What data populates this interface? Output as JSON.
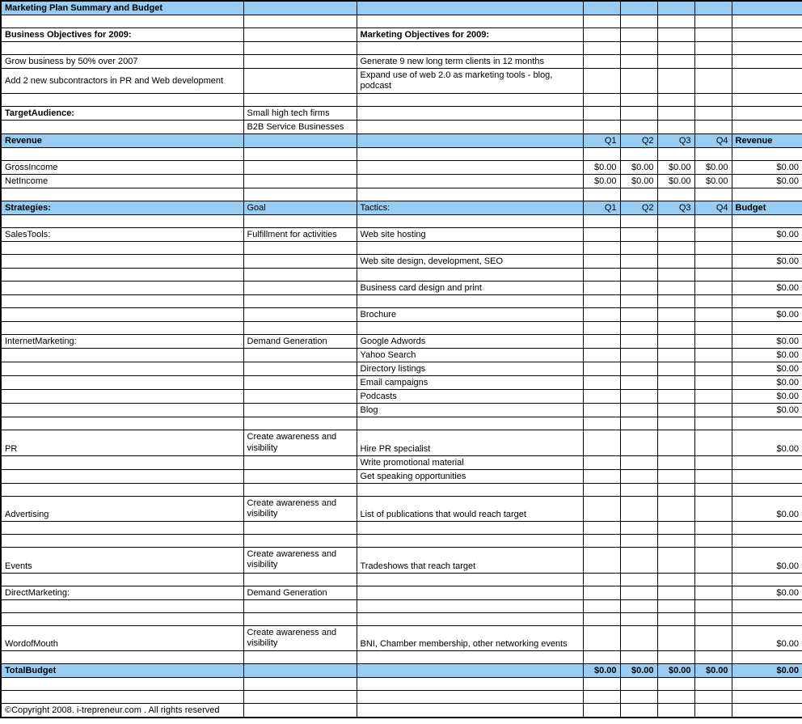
{
  "colors": {
    "header_bg": "#99ccf2",
    "border": "#000000",
    "text": "#000000",
    "bg": "#ffffff"
  },
  "title": "Marketing Plan Summary and Budget",
  "section1": {
    "left_header": "Business Objectives for 2009:",
    "right_header": "Marketing Objectives for 2009:",
    "left1": "Grow business by 50% over 2007",
    "right1": "Generate 9 new long term clients in 12 months",
    "left2": "Add 2 new subcontractors in PR and Web development",
    "right2": "Expand use of web 2.0 as marketing tools - blog, podcast"
  },
  "target": {
    "label": "TargetAudience:",
    "v1": "Small high tech firms",
    "v2": "B2B Service Businesses"
  },
  "revenue": {
    "label": "Revenue",
    "q1": "Q1",
    "q2": "Q2",
    "q3": "Q3",
    "q4": "Q4",
    "rev": "Revenue",
    "gross": "GrossIncome",
    "net": "NetIncome",
    "zero": "$0.00"
  },
  "strategies": {
    "label": "Strategies:",
    "goal": "Goal",
    "tactics": "Tactics:",
    "q1": "Q1",
    "q2": "Q2",
    "q3": "Q3",
    "q4": "Q4",
    "budget": "Budget"
  },
  "sales": {
    "name": "SalesTools:",
    "goal": "Fulfillment for activities",
    "t1": "Web site hosting",
    "t2": "Web site design, development, SEO",
    "t3": "Business card design and print",
    "t4": "Brochure"
  },
  "internet": {
    "name": "InternetMarketing:",
    "goal": "Demand Generation",
    "t1": "Google Adwords",
    "t2": "Yahoo Search",
    "t3": "Directory listings",
    "t4": "Email campaigns",
    "t5": "Podcasts",
    "t6": "Blog"
  },
  "pr": {
    "name": "PR",
    "goal": "Create awareness and visibility",
    "t1": "Hire PR specialist",
    "t2": "Write promotional material",
    "t3": "Get speaking opportunities"
  },
  "adv": {
    "name": "Advertising",
    "goal": "Create awareness and visibility",
    "t1": "List of publications that would reach target"
  },
  "events": {
    "name": "Events",
    "goal": "Create awareness and visibility",
    "t1": "Tradeshows that reach target"
  },
  "direct": {
    "name": "DirectMarketing:",
    "goal": "Demand Generation"
  },
  "wom": {
    "name": "WordofMouth",
    "goal": "Create awareness and visibility",
    "t1": "BNI, Chamber membership, other networking events"
  },
  "total": {
    "label": "TotalBudget",
    "zero": "$0.00"
  },
  "copyright": "©Copyright 2008. i-trepreneur.com . All rights reserved",
  "zero": "$0.00"
}
